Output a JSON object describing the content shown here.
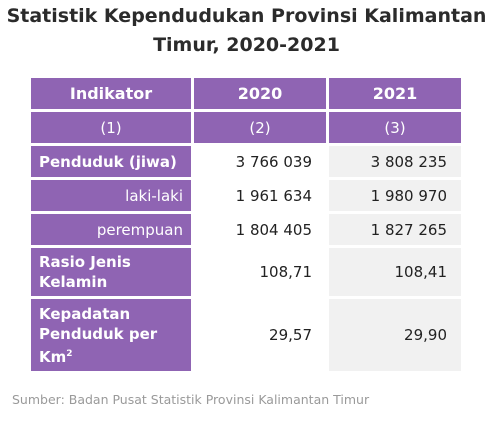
{
  "title": {
    "line1": "Statistik Kependudukan Provinsi Kalimantan",
    "line2": "Timur, 2020-2021"
  },
  "table": {
    "headers": [
      "Indikator",
      "2020",
      "2021"
    ],
    "subheaders": [
      "(1)",
      "(2)",
      "(3)"
    ],
    "rows": [
      {
        "label": "Penduduk (jiwa)",
        "v2020": "3 766 039",
        "v2021": "3 808 235"
      },
      {
        "label": "laki-laki",
        "v2020": "1 961 634",
        "v2021": "1 980 970"
      },
      {
        "label": "perempuan",
        "v2020": "1 804 405",
        "v2021": "1 827 265"
      },
      {
        "label_line1": "Rasio Jenis",
        "label_line2": "Kelamin",
        "v2020": "108,71",
        "v2021": "108,41"
      },
      {
        "label_line1": "Kepadatan",
        "label_line2": "Penduduk per",
        "label_line3": "Km",
        "label_sup": "2",
        "v2020": "29,57",
        "v2021": "29,90"
      }
    ]
  },
  "colors": {
    "header_purple": "#8f64b3",
    "alt_cell_gray": "#f1f1f1"
  },
  "source": "Sumber: Badan Pusat Statistik Provinsi Kalimantan Timur"
}
